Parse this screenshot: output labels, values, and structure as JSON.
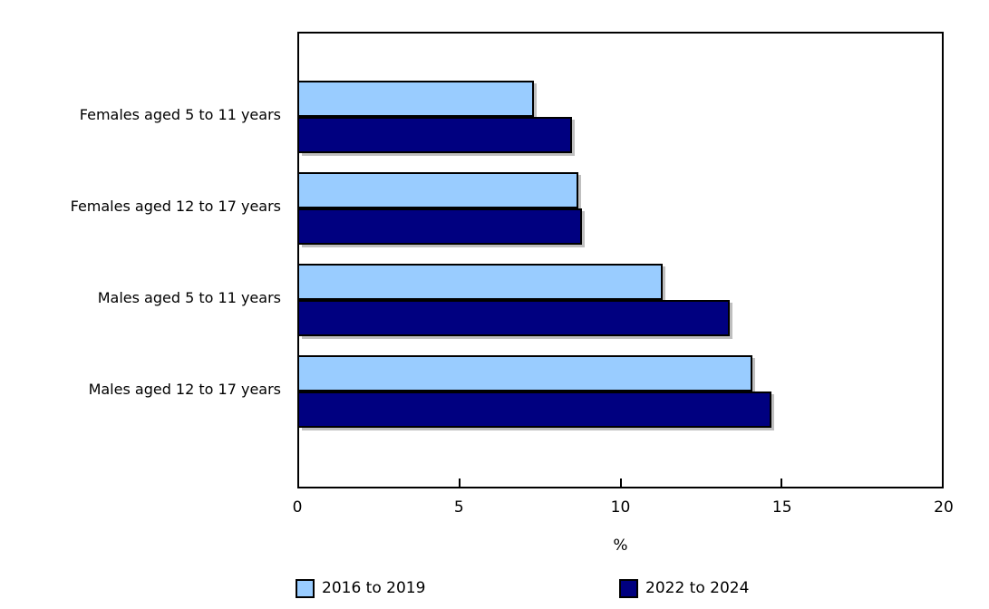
{
  "chart_data": {
    "type": "bar",
    "orientation": "horizontal",
    "title": "",
    "categories": [
      "Females aged 5 to 11 years",
      "Females aged 12 to 17 years",
      "Males aged 5 to 11 years",
      "Males aged 12 to 17 years"
    ],
    "series": [
      {
        "name": "2016 to 2019",
        "color": "#99CCFF",
        "values": [
          7.3,
          8.7,
          11.3,
          14.1
        ]
      },
      {
        "name": "2022 to 2024",
        "color": "#000080",
        "values": [
          8.5,
          8.8,
          13.4,
          14.7
        ]
      }
    ],
    "xlabel": "%",
    "xlim": [
      0,
      20
    ],
    "xticks": [
      0,
      5,
      10,
      15,
      20
    ],
    "grid": false,
    "legend_position": "bottom"
  },
  "style": {
    "background": "#FFFFFF",
    "text_color": "#000000",
    "axis_color": "#000000",
    "bar_border_color": "#000000",
    "bar_shadow_color": "#BFBFBF"
  },
  "layout_note": "grouped horizontal bars, light-blue series above navy series in each group"
}
